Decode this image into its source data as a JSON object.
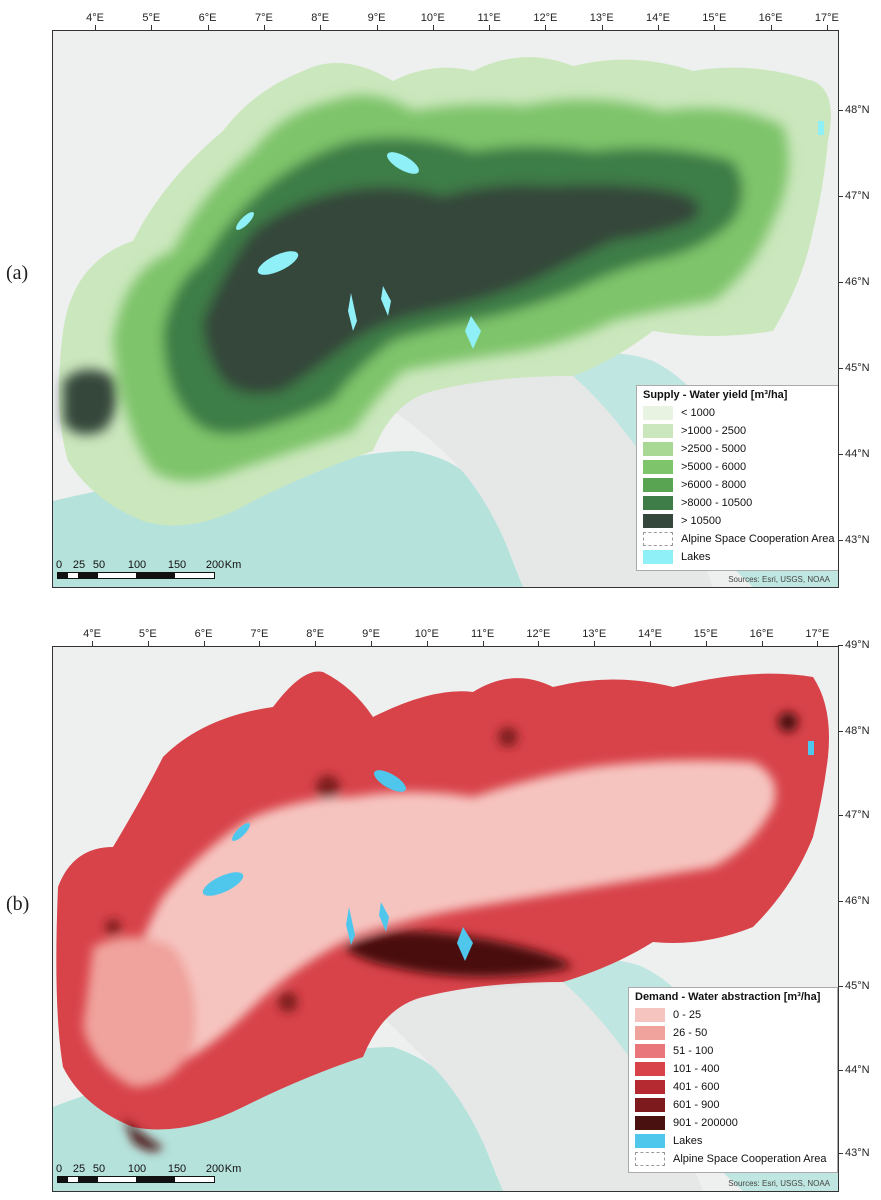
{
  "panels": [
    {
      "id": "a",
      "label": "(a)",
      "lon_ticks": [
        "4°E",
        "5°E",
        "6°E",
        "7°E",
        "8°E",
        "9°E",
        "10°E",
        "11°E",
        "12°E",
        "13°E",
        "14°E",
        "15°E",
        "16°E",
        "17°E"
      ],
      "lat_ticks": [
        "48°N",
        "47°N",
        "46°N",
        "45°N",
        "44°N",
        "43°N"
      ],
      "legend": {
        "title": "Supply - Water yield [m³/ha]",
        "items": [
          {
            "label": "< 1000",
            "color": "#e8f3e2"
          },
          {
            "label": ">1000 - 2500",
            "color": "#cbe7bd"
          },
          {
            "label": ">2500 - 5000",
            "color": "#a8d894"
          },
          {
            "label": ">5000 - 6000",
            "color": "#7ec46a"
          },
          {
            "label": ">6000 - 8000",
            "color": "#58a452"
          },
          {
            "label": ">8000 - 10500",
            "color": "#3e7d47"
          },
          {
            "label": "> 10500",
            "color": "#34473a"
          },
          {
            "label": "Alpine Space Cooperation Area",
            "color": "#ffffff",
            "style": "dashed"
          },
          {
            "label": "Lakes",
            "color": "#8ff0f8"
          }
        ]
      },
      "scale": {
        "labels": [
          "0",
          "25",
          "50",
          "100",
          "150",
          "200"
        ],
        "unit": "Km"
      },
      "sources": "Sources: Esri, USGS, NOAA"
    },
    {
      "id": "b",
      "label": "(b)",
      "lon_ticks": [
        "4°E",
        "5°E",
        "6°E",
        "7°E",
        "8°E",
        "9°E",
        "10°E",
        "11°E",
        "12°E",
        "13°E",
        "14°E",
        "15°E",
        "16°E",
        "17°E"
      ],
      "lat_ticks": [
        "49°N",
        "48°N",
        "47°N",
        "46°N",
        "45°N",
        "44°N",
        "43°N"
      ],
      "legend": {
        "title": "Demand - Water abstraction [m³/ha]",
        "items": [
          {
            "label": "0 - 25",
            "color": "#f6c4bf"
          },
          {
            "label": "26 - 50",
            "color": "#f0a29c"
          },
          {
            "label": "51 - 100",
            "color": "#e8767a"
          },
          {
            "label": "101 - 400",
            "color": "#d8434a"
          },
          {
            "label": "401 - 600",
            "color": "#b52a30"
          },
          {
            "label": "601 - 900",
            "color": "#7d1a1d"
          },
          {
            "label": "901 - 200000",
            "color": "#4a1111"
          },
          {
            "label": "Lakes",
            "color": "#4fc6ec"
          },
          {
            "label": "Alpine Space Cooperation Area",
            "color": "#ffffff",
            "style": "dashed"
          }
        ]
      },
      "scale": {
        "labels": [
          "0",
          "25",
          "50",
          "100",
          "150",
          "200"
        ],
        "unit": "Km"
      },
      "sources": "Sources: Esri, USGS, NOAA"
    }
  ]
}
